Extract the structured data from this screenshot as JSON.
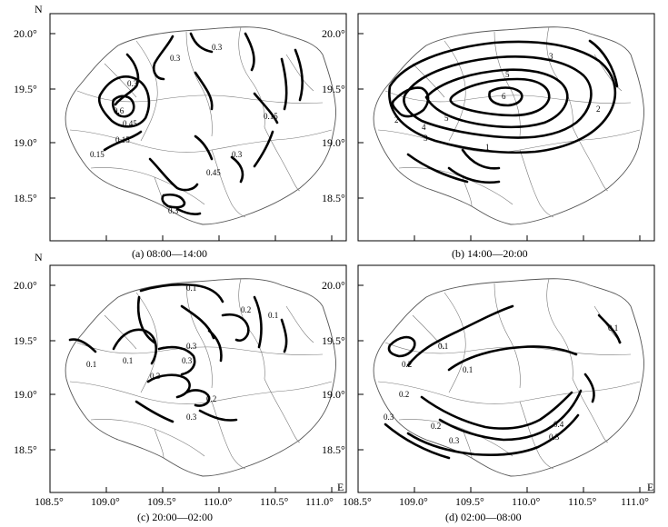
{
  "lat_labels": [
    "20.0°",
    "19.5°",
    "19.0°",
    "18.5°"
  ],
  "lon_labels": [
    "108.5°",
    "109.0°",
    "109.5°",
    "110.0°",
    "110.5°",
    "111.0°"
  ],
  "north_letter": "N",
  "east_letter": "E",
  "panels": [
    {
      "caption": "(a) 08:00—14:00",
      "contour_labels": [
        "0.3",
        "0.3",
        "0.3",
        "0.6",
        "0.45",
        "0.15",
        "0.15",
        "0.15",
        "0.3",
        "0.45",
        "0.3"
      ]
    },
    {
      "caption": "(b) 14:00—20:00",
      "contour_labels": [
        "3",
        "5",
        "6",
        "2",
        "5",
        "4",
        "3",
        "2",
        "1"
      ]
    },
    {
      "caption": "(c) 20:00—02:00",
      "contour_labels": [
        "0.1",
        "0.2",
        "0.1",
        "0.1",
        "0.1",
        "0.3",
        "0.3",
        "0.3",
        "0.2",
        "0.3"
      ]
    },
    {
      "caption": "(d) 02:00—08:00",
      "contour_labels": [
        "0.1",
        "0.2",
        "0.1",
        "0.1",
        "0.2",
        "0.4",
        "0.3",
        "0.3",
        "0.2",
        "0.3"
      ]
    }
  ]
}
